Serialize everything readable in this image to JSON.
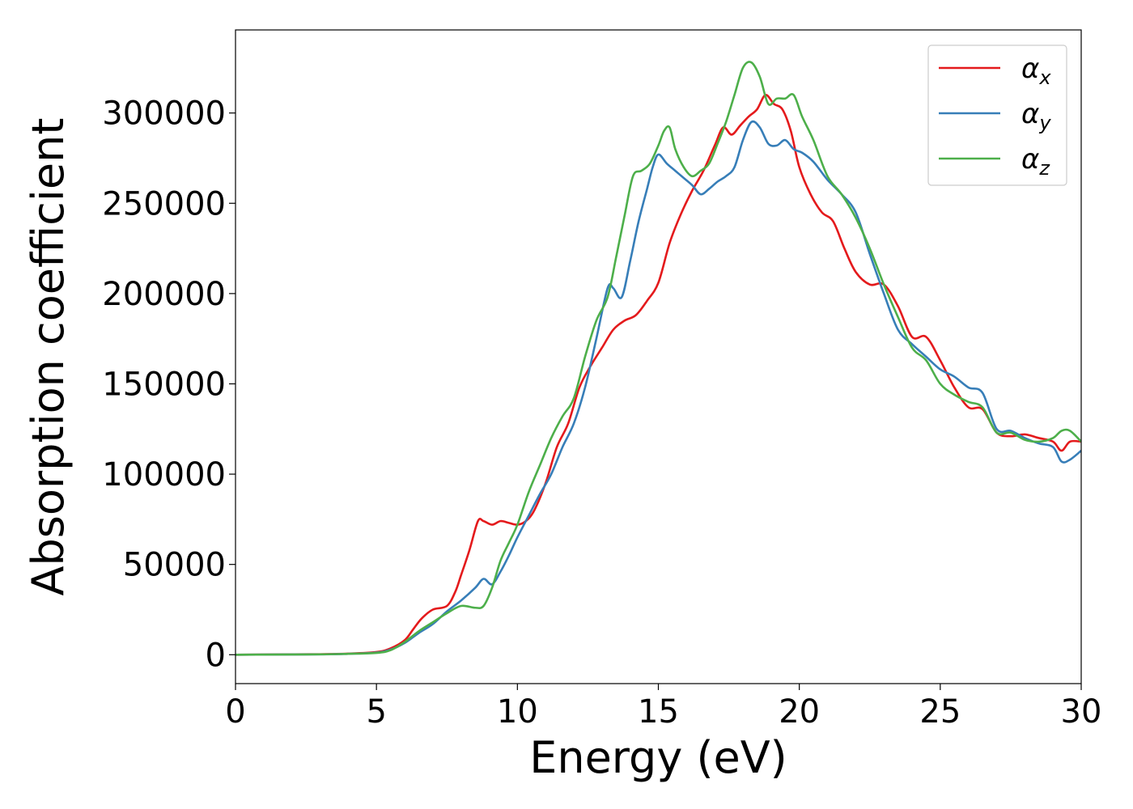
{
  "chart_data": {
    "type": "line",
    "title": "",
    "xlabel": "Energy (eV)",
    "ylabel": "Absorption coefficient",
    "xlim": [
      0,
      30
    ],
    "ylim": [
      -16000,
      346000
    ],
    "xticks": [
      0,
      5,
      10,
      15,
      20,
      25,
      30
    ],
    "yticks": [
      0,
      50000,
      100000,
      150000,
      200000,
      250000,
      300000
    ],
    "grid": false,
    "legend_position": "top-right",
    "series": [
      {
        "name": "α",
        "subscript": "x",
        "color": "#e41a1c",
        "x": [
          0,
          3,
          4,
          5,
          5.5,
          6,
          6.3,
          6.6,
          7,
          7.5,
          7.8,
          8,
          8.3,
          8.6,
          8.8,
          9.1,
          9.4,
          9.7,
          10,
          10.3,
          10.6,
          11,
          11.4,
          11.8,
          12.2,
          12.6,
          13,
          13.4,
          13.8,
          14.2,
          14.6,
          15,
          15.4,
          15.8,
          16.2,
          16.6,
          17,
          17.3,
          17.6,
          17.9,
          18.2,
          18.5,
          18.8,
          19.1,
          19.4,
          19.7,
          20,
          20.4,
          20.8,
          21.2,
          21.6,
          22,
          22.5,
          23,
          23.5,
          24,
          24.5,
          25,
          25.5,
          26,
          26.5,
          27,
          27.5,
          28,
          28.5,
          29,
          29.3,
          29.6,
          30
        ],
        "values": [
          0,
          300,
          600,
          1500,
          3500,
          8000,
          14000,
          20000,
          25000,
          27000,
          35000,
          44000,
          58000,
          74000,
          74000,
          72000,
          74000,
          73000,
          72000,
          74000,
          80000,
          95000,
          115000,
          128000,
          148000,
          160000,
          170000,
          180000,
          185000,
          188000,
          196000,
          206000,
          228000,
          244000,
          257000,
          268000,
          282000,
          292000,
          288000,
          293000,
          298000,
          302000,
          310000,
          305000,
          302000,
          290000,
          270000,
          255000,
          245000,
          240000,
          225000,
          212000,
          205000,
          205000,
          193000,
          176000,
          176000,
          163000,
          148000,
          137000,
          136000,
          123000,
          121000,
          122000,
          120000,
          118000,
          113000,
          118000,
          118000
        ]
      },
      {
        "name": "α",
        "subscript": "y",
        "color": "#377eb8",
        "x": [
          0,
          3,
          4,
          5,
          5.5,
          6,
          6.5,
          7,
          7.5,
          8,
          8.5,
          8.8,
          9.1,
          9.4,
          9.7,
          10,
          10.4,
          10.8,
          11.2,
          11.6,
          12,
          12.4,
          12.8,
          13.2,
          13.4,
          13.7,
          14,
          14.3,
          14.6,
          14.8,
          15,
          15.3,
          15.6,
          15.9,
          16.2,
          16.5,
          16.8,
          17.1,
          17.4,
          17.7,
          18,
          18.3,
          18.6,
          18.9,
          19.2,
          19.5,
          19.8,
          20.1,
          20.5,
          21,
          21.5,
          22,
          22.5,
          23,
          23.5,
          24,
          24.5,
          25,
          25.5,
          26,
          26.5,
          27,
          27.5,
          28,
          28.5,
          29,
          29.3,
          29.6,
          30
        ],
        "values": [
          0,
          200,
          500,
          1200,
          2800,
          6500,
          12000,
          17000,
          24000,
          30000,
          37000,
          42000,
          39000,
          46000,
          55000,
          65000,
          77000,
          89000,
          100000,
          115000,
          128000,
          148000,
          175000,
          203000,
          203000,
          198000,
          218000,
          240000,
          258000,
          270000,
          277000,
          272000,
          268000,
          264000,
          260000,
          255000,
          258000,
          262000,
          265000,
          270000,
          285000,
          295000,
          292000,
          283000,
          282000,
          285000,
          280000,
          278000,
          273000,
          263000,
          255000,
          245000,
          222000,
          200000,
          180000,
          172000,
          165000,
          158000,
          154000,
          148000,
          145000,
          125000,
          124000,
          120000,
          117000,
          115000,
          107000,
          108000,
          113000
        ]
      },
      {
        "name": "α",
        "subscript": "z",
        "color": "#4daf4a",
        "x": [
          0,
          3,
          4,
          5,
          5.5,
          6,
          6.5,
          7,
          7.5,
          8,
          8.5,
          8.8,
          9.1,
          9.4,
          9.7,
          10,
          10.4,
          10.8,
          11.2,
          11.6,
          12,
          12.4,
          12.8,
          13.2,
          13.5,
          13.8,
          14.1,
          14.4,
          14.7,
          15,
          15.2,
          15.4,
          15.6,
          15.9,
          16.2,
          16.5,
          16.8,
          17.1,
          17.4,
          17.7,
          18,
          18.3,
          18.6,
          18.9,
          19.2,
          19.5,
          19.8,
          20.1,
          20.5,
          21,
          21.5,
          22,
          22.5,
          23,
          23.5,
          24,
          24.5,
          25,
          25.5,
          26,
          26.5,
          27,
          27.5,
          28,
          28.5,
          29,
          29.3,
          29.6,
          30
        ],
        "values": [
          0,
          200,
          500,
          1000,
          2500,
          7000,
          13000,
          18000,
          23000,
          27000,
          26000,
          27000,
          37000,
          52000,
          62000,
          72000,
          90000,
          105000,
          120000,
          132000,
          142000,
          165000,
          185000,
          198000,
          220000,
          243000,
          265000,
          268000,
          272000,
          282000,
          290000,
          292000,
          280000,
          270000,
          265000,
          268000,
          272000,
          283000,
          295000,
          310000,
          325000,
          328000,
          320000,
          305000,
          308000,
          308000,
          310000,
          298000,
          285000,
          265000,
          255000,
          242000,
          225000,
          205000,
          187000,
          170000,
          163000,
          150000,
          144000,
          140000,
          137000,
          123000,
          123000,
          119000,
          118000,
          120000,
          124000,
          124000,
          118000
        ]
      }
    ]
  }
}
